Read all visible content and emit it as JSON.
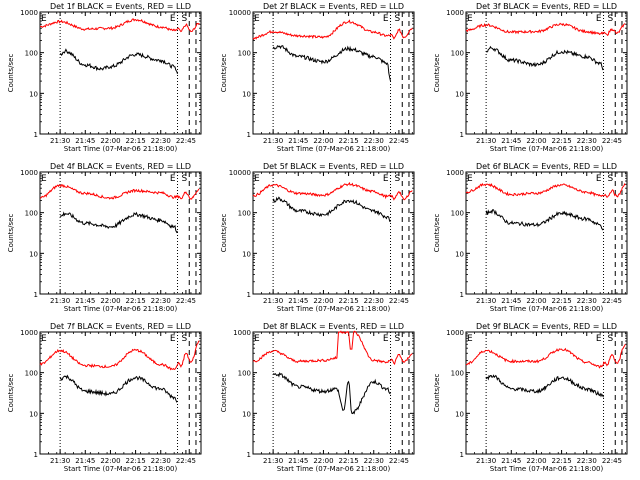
{
  "chart_data": {
    "type": "line",
    "grid": false,
    "yscale": "log",
    "ylim": [
      1,
      1000
    ],
    "yticks": [
      "1",
      "10",
      "100",
      "1000"
    ],
    "ylabel": "Counts/sec",
    "xlabel": "Start Time (07-Mar-06 21:18:00)",
    "xlim": [
      "21:18",
      "22:54"
    ],
    "xticks": [
      "21:30",
      "21:45",
      "22:00",
      "22:15",
      "22:30",
      "22:45"
    ],
    "markers": [
      {
        "label": "",
        "time": "21:30",
        "style": "dotted"
      },
      {
        "label": "E",
        "time": "22:40",
        "style": "dotted"
      },
      {
        "label": "S",
        "time": "22:47",
        "style": "dashed"
      },
      {
        "label": "",
        "time": "22:51",
        "style": "dashed"
      }
    ],
    "series_colors": {
      "events": "#000000",
      "lld": "#ff0000"
    },
    "panels": [
      {
        "title": "Det 1f BLACK = Events, RED = LLD",
        "ymax_label": "1000",
        "series": [
          {
            "color": "#ff0000",
            "x": [
              "21:18",
              "21:30",
              "21:45",
              "22:00",
              "22:15",
              "22:30",
              "22:38",
              "22:41",
              "22:42",
              "22:45",
              "22:48",
              "22:53"
            ],
            "y": [
              440,
              580,
              380,
              400,
              650,
              430,
              350,
              380,
              330,
              480,
              330,
              530
            ]
          },
          {
            "color": "#000000",
            "x": [
              "21:30",
              "21:33",
              "21:45",
              "21:55",
              "22:00",
              "22:15",
              "22:30",
              "22:38",
              "22:40"
            ],
            "y": [
              90,
              110,
              50,
              40,
              45,
              90,
              65,
              45,
              30
            ]
          }
        ]
      },
      {
        "title": "Det 2f BLACK = Events, RED = LLD",
        "ymax_label": "10000",
        "series": [
          {
            "color": "#ff0000",
            "x": [
              "21:18",
              "21:30",
              "21:45",
              "22:00",
              "22:15",
              "22:30",
              "22:38",
              "22:41",
              "22:42",
              "22:45",
              "22:48",
              "22:53"
            ],
            "y": [
              230,
              330,
              260,
              240,
              580,
              320,
              260,
              270,
              220,
              360,
              240,
              400
            ]
          },
          {
            "color": "#000000",
            "x": [
              "21:30",
              "21:33",
              "21:45",
              "22:00",
              "22:15",
              "22:30",
              "22:38",
              "22:40"
            ],
            "y": [
              130,
              145,
              80,
              60,
              125,
              80,
              55,
              20
            ]
          }
        ]
      },
      {
        "title": "Det 3f BLACK = Events, RED = LLD",
        "ymax_label": "1000",
        "series": [
          {
            "color": "#ff0000",
            "x": [
              "21:18",
              "21:30",
              "21:45",
              "22:00",
              "22:15",
              "22:30",
              "22:38",
              "22:41",
              "22:42",
              "22:45",
              "22:48",
              "22:53"
            ],
            "y": [
              350,
              480,
              320,
              330,
              500,
              330,
              290,
              300,
              280,
              380,
              300,
              500
            ]
          },
          {
            "color": "#000000",
            "x": [
              "21:30",
              "21:33",
              "21:45",
              "22:00",
              "22:15",
              "22:30",
              "22:38",
              "22:40"
            ],
            "y": [
              110,
              130,
              65,
              50,
              105,
              80,
              55,
              40
            ]
          }
        ]
      },
      {
        "title": "Det 4f BLACK = Events, RED = LLD",
        "ymax_label": "1000",
        "series": [
          {
            "color": "#ff0000",
            "x": [
              "21:18",
              "21:30",
              "21:45",
              "22:00",
              "22:15",
              "22:30",
              "22:38",
              "22:41",
              "22:42",
              "22:45",
              "22:48",
              "22:53"
            ],
            "y": [
              230,
              470,
              300,
              230,
              350,
              310,
              240,
              250,
              220,
              320,
              220,
              380
            ]
          },
          {
            "color": "#000000",
            "x": [
              "21:30",
              "21:33",
              "21:45",
              "22:00",
              "22:15",
              "22:30",
              "22:38",
              "22:40"
            ],
            "y": [
              80,
              95,
              55,
              45,
              90,
              65,
              45,
              35
            ]
          }
        ]
      },
      {
        "title": "Det 5f BLACK = Events, RED = LLD",
        "ymax_label": "10000",
        "series": [
          {
            "color": "#ff0000",
            "x": [
              "21:18",
              "21:30",
              "21:45",
              "22:00",
              "22:15",
              "22:30",
              "22:38",
              "22:41",
              "22:42",
              "22:45",
              "22:48",
              "22:53"
            ],
            "y": [
              260,
              480,
              300,
              270,
              500,
              330,
              250,
              260,
              210,
              330,
              210,
              350
            ]
          },
          {
            "color": "#000000",
            "x": [
              "21:30",
              "21:33",
              "21:45",
              "22:00",
              "22:15",
              "22:30",
              "22:38",
              "22:40"
            ],
            "y": [
              190,
              220,
              110,
              90,
              200,
              110,
              80,
              60
            ]
          }
        ]
      },
      {
        "title": "Det 6f BLACK = Events, RED = LLD",
        "ymax_label": "1000",
        "series": [
          {
            "color": "#ff0000",
            "x": [
              "21:18",
              "21:30",
              "21:45",
              "22:00",
              "22:15",
              "22:30",
              "22:38",
              "22:41",
              "22:42",
              "22:45",
              "22:48",
              "22:53"
            ],
            "y": [
              320,
              500,
              280,
              300,
              480,
              320,
              260,
              280,
              240,
              350,
              250,
              480
            ]
          },
          {
            "color": "#000000",
            "x": [
              "21:30",
              "21:33",
              "21:45",
              "22:00",
              "22:15",
              "22:30",
              "22:38",
              "22:40"
            ],
            "y": [
              95,
              110,
              55,
              50,
              95,
              70,
              50,
              40
            ]
          }
        ]
      },
      {
        "title": "Det 7f BLACK = Events, RED = LLD",
        "ymax_label": "1000",
        "series": [
          {
            "color": "#ff0000",
            "x": [
              "21:18",
              "21:30",
              "21:45",
              "22:00",
              "22:15",
              "22:30",
              "22:38",
              "22:41",
              "22:42",
              "22:45",
              "22:48",
              "22:53"
            ],
            "y": [
              160,
              350,
              150,
              140,
              360,
              160,
              120,
              170,
              140,
              300,
              180,
              600
            ]
          },
          {
            "color": "#000000",
            "x": [
              "21:30",
              "21:33",
              "21:45",
              "22:00",
              "22:15",
              "22:30",
              "22:38",
              "22:40"
            ],
            "y": [
              70,
              80,
              35,
              30,
              75,
              40,
              25,
              20
            ]
          }
        ]
      },
      {
        "title": "Det 8f BLACK = Events, RED = LLD",
        "ymax_label": "1000",
        "series": [
          {
            "color": "#ff0000",
            "x": [
              "21:18",
              "21:30",
              "21:45",
              "22:00",
              "22:08",
              "22:09",
              "22:15",
              "22:16",
              "22:17",
              "22:18",
              "22:30",
              "22:38",
              "22:41",
              "22:42",
              "22:45",
              "22:48",
              "22:53"
            ],
            "y": [
              190,
              340,
              190,
              200,
              230,
              1000,
              1000,
              380,
              380,
              1000,
              200,
              180,
              210,
              170,
              280,
              180,
              290
            ]
          },
          {
            "color": "#000000",
            "x": [
              "21:30",
              "21:33",
              "21:45",
              "22:00",
              "22:08",
              "22:12",
              "22:15",
              "22:17",
              "22:30",
              "22:38",
              "22:40"
            ],
            "y": [
              90,
              90,
              45,
              35,
              40,
              12,
              60,
              10,
              60,
              40,
              30
            ]
          }
        ]
      },
      {
        "title": "Det 9f BLACK = Events, RED = LLD",
        "ymax_label": "1000",
        "series": [
          {
            "color": "#ff0000",
            "x": [
              "21:18",
              "21:30",
              "21:45",
              "22:00",
              "22:15",
              "22:30",
              "22:38",
              "22:41",
              "22:42",
              "22:45",
              "22:48",
              "22:53"
            ],
            "y": [
              160,
              350,
              190,
              190,
              380,
              180,
              140,
              180,
              150,
              280,
              170,
              500
            ]
          },
          {
            "color": "#000000",
            "x": [
              "21:30",
              "21:33",
              "21:45",
              "22:00",
              "22:15",
              "22:30",
              "22:38",
              "22:40"
            ],
            "y": [
              70,
              85,
              40,
              35,
              75,
              40,
              30,
              25
            ]
          }
        ]
      }
    ]
  }
}
